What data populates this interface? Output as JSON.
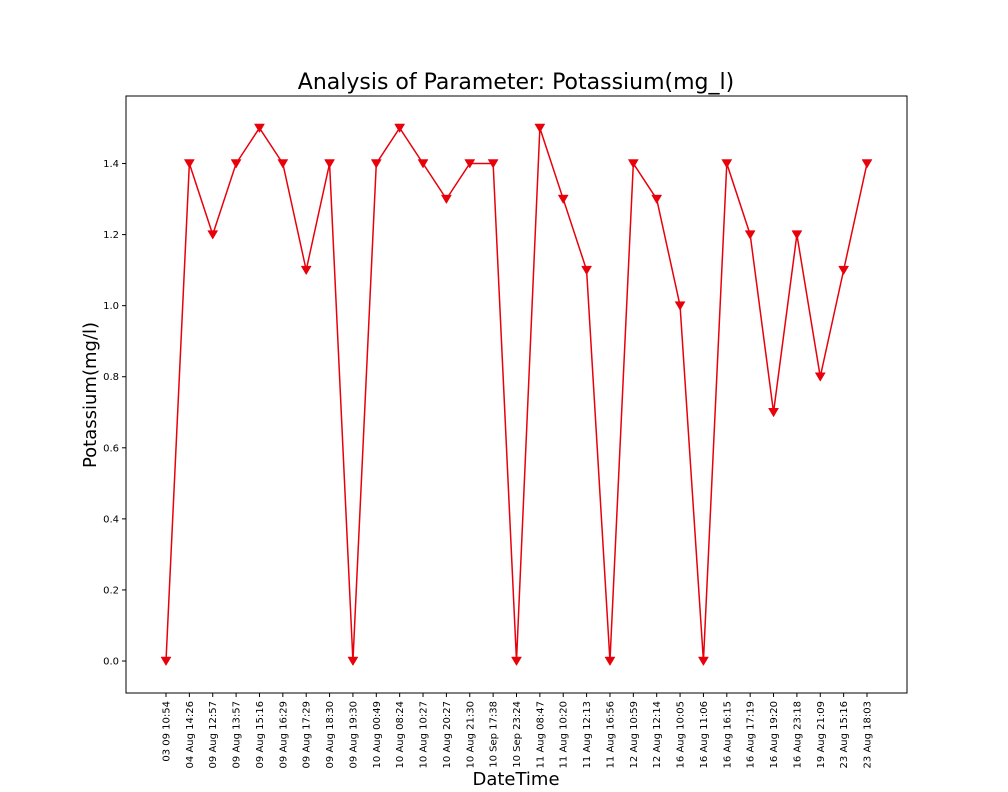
{
  "chart_data": {
    "type": "line",
    "title": "Analysis of Parameter: Potassium(mg_l)",
    "xlabel": "DateTime",
    "ylabel": "Potassium(mg/l)",
    "ylim": [
      -0.09,
      1.59
    ],
    "yticks": [
      0.0,
      0.2,
      0.4,
      0.6,
      0.8,
      1.0,
      1.2,
      1.4
    ],
    "ytick_labels": [
      "0.0",
      "0.2",
      "0.4",
      "0.6",
      "0.8",
      "1.0",
      "1.2",
      "1.4"
    ],
    "grid": false,
    "marker": "triangle-down",
    "colors": {
      "line": "#e8000b",
      "axes": "#000000",
      "background": "#ffffff"
    },
    "categories": [
      "03 09 10:54",
      "04 Aug 14:26",
      "09 Aug 12:57",
      "09 Aug 13:57",
      "09 Aug 15:16",
      "09 Aug 16:29",
      "09 Aug 17:29",
      "09 Aug 18:30",
      "09 Aug 19:30",
      "10 Aug 00:49",
      "10 Aug 08:24",
      "10 Aug 10:27",
      "10 Aug 20:27",
      "10 Aug 21:30",
      "10 Sep 17:38",
      "10 Sep 23:24",
      "11 Aug 08:47",
      "11 Aug 10:20",
      "11 Aug 12:13",
      "11 Aug 16:56",
      "12 Aug 10:59",
      "12 Aug 12:14",
      "16 Aug 10:05",
      "16 Aug 11:06",
      "16 Aug 16:15",
      "16 Aug 17:19",
      "16 Aug 19:20",
      "16 Aug 23:18",
      "19 Aug 21:09",
      "23 Aug 15:16",
      "23 Aug 18:03"
    ],
    "series": [
      {
        "values": [
          0.0,
          1.4,
          1.2,
          1.4,
          1.5,
          1.4,
          1.1,
          1.4,
          0.0,
          1.4,
          1.5,
          1.4,
          1.3,
          1.4,
          1.4,
          0.0,
          1.5,
          1.3,
          1.1,
          0.0,
          1.4,
          1.3,
          1.0,
          0.0,
          1.4,
          1.2,
          0.7,
          1.2,
          0.8,
          1.1,
          1.4
        ]
      }
    ]
  }
}
